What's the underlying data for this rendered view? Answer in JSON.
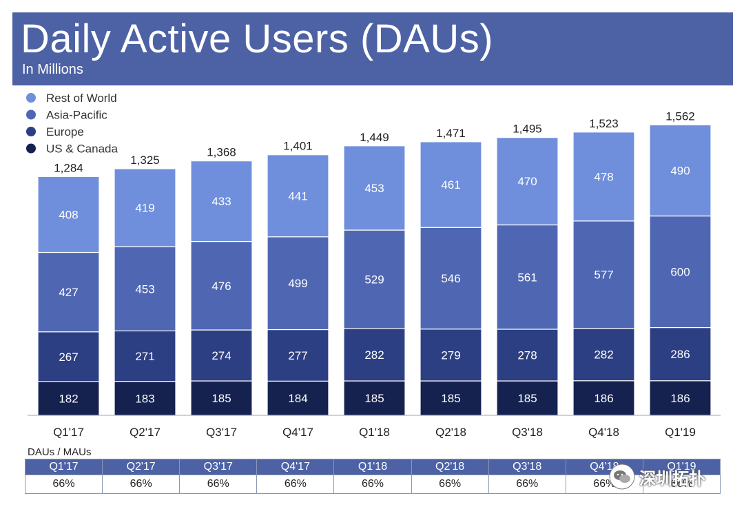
{
  "header": {
    "title": "Daily Active Users (DAUs)",
    "subtitle": "In Millions"
  },
  "colors": {
    "header_bg": "#4d62a5",
    "rest_of_world": "#6f8fdc",
    "asia_pacific": "#4f67b3",
    "europe": "#2c3f82",
    "us_canada": "#15214f"
  },
  "chart_data": {
    "type": "bar",
    "stacked": true,
    "categories": [
      "Q1'17",
      "Q2'17",
      "Q3'17",
      "Q4'17",
      "Q1'18",
      "Q2'18",
      "Q3'18",
      "Q4'18",
      "Q1'19"
    ],
    "series": [
      {
        "name": "US & Canada",
        "values": [
          182,
          183,
          185,
          184,
          185,
          185,
          185,
          186,
          186
        ]
      },
      {
        "name": "Europe",
        "values": [
          267,
          271,
          274,
          277,
          282,
          279,
          278,
          282,
          286
        ]
      },
      {
        "name": "Asia-Pacific",
        "values": [
          427,
          453,
          476,
          499,
          529,
          546,
          561,
          577,
          600
        ]
      },
      {
        "name": "Rest of World",
        "values": [
          408,
          419,
          433,
          441,
          453,
          461,
          470,
          478,
          490
        ]
      }
    ],
    "totals": [
      "1,284",
      "1,325",
      "1,368",
      "1,401",
      "1,449",
      "1,471",
      "1,495",
      "1,523",
      "1,562"
    ],
    "legend_order": [
      "Rest of World",
      "Asia-Pacific",
      "Europe",
      "US & Canada"
    ],
    "legend_position": "top-left",
    "grid": false
  },
  "ratio_table": {
    "title": "DAUs / MAUs",
    "quarters": [
      "Q1'17",
      "Q2'17",
      "Q3'17",
      "Q4'17",
      "Q1'18",
      "Q2'18",
      "Q3'18",
      "Q4'18",
      "Q1'19"
    ],
    "values": [
      "66%",
      "66%",
      "66%",
      "66%",
      "66%",
      "66%",
      "66%",
      "66%",
      "66%"
    ]
  },
  "watermark": {
    "text": "深圳拓扑",
    "icon": "wechat-icon"
  }
}
